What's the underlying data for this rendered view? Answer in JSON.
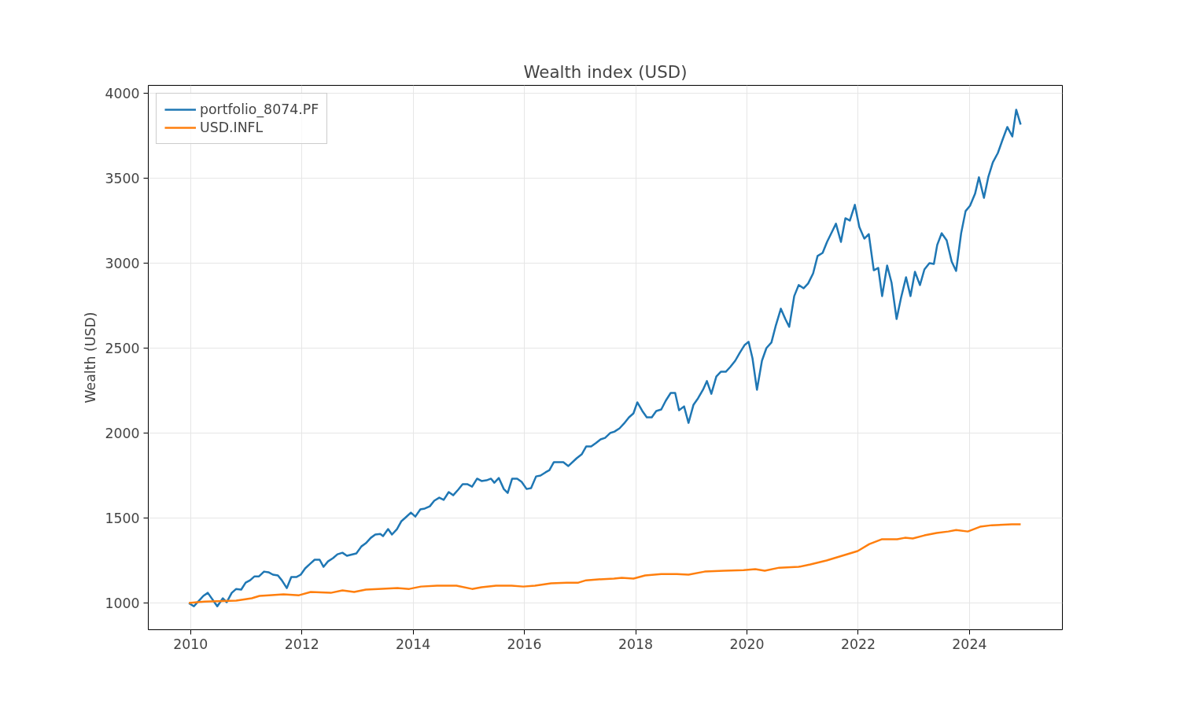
{
  "chart_data": {
    "type": "line",
    "title": "Wealth index (USD)",
    "ylabel": "Wealth (USD)",
    "xlim": [
      2009.24,
      2025.67
    ],
    "xticks": [
      2010,
      2012,
      2014,
      2016,
      2018,
      2020,
      2022,
      2024
    ],
    "ylim": [
      843,
      4046
    ],
    "yticks": [
      1000,
      1500,
      2000,
      2500,
      3000,
      3500,
      4000
    ],
    "grid": true,
    "legend": "top left",
    "line_style": "solid",
    "series": [
      {
        "name": "portfolio_8074.PF",
        "color": "#1f77b4",
        "x": [
          2009.97,
          2010.06,
          2010.23,
          2010.31,
          2010.48,
          2010.58,
          2010.65,
          2010.74,
          2010.82,
          2010.91,
          2010.99,
          2011.07,
          2011.15,
          2011.23,
          2011.32,
          2011.4,
          2011.48,
          2011.57,
          2011.64,
          2011.73,
          2011.81,
          2011.9,
          2011.98,
          2012.06,
          2012.15,
          2012.23,
          2012.32,
          2012.39,
          2012.47,
          2012.56,
          2012.64,
          2012.73,
          2012.81,
          2012.98,
          2013.07,
          2013.15,
          2013.24,
          2013.32,
          2013.41,
          2013.46,
          2013.55,
          2013.62,
          2013.71,
          2013.79,
          2013.87,
          2013.96,
          2014.04,
          2014.13,
          2014.21,
          2014.3,
          2014.38,
          2014.47,
          2014.55,
          2014.64,
          2014.72,
          2014.81,
          2014.89,
          2014.98,
          2015.06,
          2015.15,
          2015.23,
          2015.32,
          2015.4,
          2015.46,
          2015.54,
          2015.63,
          2015.7,
          2015.78,
          2015.87,
          2015.95,
          2016.04,
          2016.12,
          2016.21,
          2016.29,
          2016.38,
          2016.45,
          2016.53,
          2016.7,
          2016.79,
          2016.94,
          2017.03,
          2017.11,
          2017.2,
          2017.28,
          2017.37,
          2017.45,
          2017.54,
          2017.62,
          2017.71,
          2017.79,
          2017.88,
          2017.96,
          2018.03,
          2018.12,
          2018.2,
          2018.29,
          2018.37,
          2018.46,
          2018.54,
          2018.63,
          2018.71,
          2018.78,
          2018.87,
          2018.95,
          2019.04,
          2019.12,
          2019.21,
          2019.28,
          2019.36,
          2019.45,
          2019.53,
          2019.62,
          2019.7,
          2019.79,
          2019.87,
          2019.96,
          2020.03,
          2020.1,
          2020.18,
          2020.27,
          2020.35,
          2020.44,
          2020.52,
          2020.61,
          2020.69,
          2020.76,
          2020.85,
          2020.93,
          2021.02,
          2021.1,
          2021.19,
          2021.27,
          2021.36,
          2021.44,
          2021.53,
          2021.6,
          2021.69,
          2021.77,
          2021.85,
          2021.94,
          2022.02,
          2022.11,
          2022.19,
          2022.28,
          2022.36,
          2022.43,
          2022.52,
          2022.6,
          2022.69,
          2022.77,
          2022.86,
          2022.94,
          2023.02,
          2023.11,
          2023.19,
          2023.28,
          2023.36,
          2023.42,
          2023.5,
          2023.59,
          2023.68,
          2023.76,
          2023.85,
          2023.93,
          2024.01,
          2024.1,
          2024.17,
          2024.26,
          2024.34,
          2024.42,
          2024.51,
          2024.59,
          2024.68,
          2024.77,
          2024.84,
          2024.92
        ],
        "values": [
          1000,
          981,
          1042,
          1060,
          981,
          1028,
          1005,
          1060,
          1083,
          1079,
          1120,
          1134,
          1157,
          1157,
          1185,
          1181,
          1167,
          1162,
          1134,
          1088,
          1153,
          1153,
          1167,
          1204,
          1231,
          1255,
          1255,
          1213,
          1245,
          1264,
          1287,
          1296,
          1278,
          1292,
          1333,
          1352,
          1384,
          1403,
          1407,
          1394,
          1435,
          1403,
          1435,
          1482,
          1505,
          1532,
          1509,
          1551,
          1556,
          1569,
          1602,
          1620,
          1607,
          1653,
          1634,
          1667,
          1699,
          1699,
          1685,
          1732,
          1718,
          1722,
          1732,
          1708,
          1736,
          1671,
          1648,
          1732,
          1732,
          1713,
          1671,
          1676,
          1745,
          1750,
          1769,
          1782,
          1829,
          1829,
          1806,
          1852,
          1875,
          1921,
          1921,
          1940,
          1963,
          1972,
          2000,
          2009,
          2028,
          2056,
          2093,
          2116,
          2181,
          2130,
          2093,
          2093,
          2130,
          2139,
          2190,
          2236,
          2236,
          2134,
          2157,
          2060,
          2167,
          2204,
          2255,
          2306,
          2231,
          2333,
          2361,
          2361,
          2389,
          2426,
          2472,
          2519,
          2537,
          2440,
          2255,
          2426,
          2500,
          2533,
          2634,
          2732,
          2671,
          2625,
          2806,
          2871,
          2852,
          2880,
          2940,
          3042,
          3060,
          3125,
          3185,
          3232,
          3125,
          3264,
          3250,
          3343,
          3213,
          3144,
          3171,
          2958,
          2972,
          2806,
          2986,
          2884,
          2671,
          2796,
          2917,
          2806,
          2949,
          2871,
          2963,
          3000,
          2995,
          3107,
          3176,
          3134,
          3009,
          2954,
          3176,
          3306,
          3338,
          3408,
          3505,
          3384,
          3509,
          3593,
          3648,
          3722,
          3801,
          3745,
          3903,
          3815
        ]
      },
      {
        "name": "USD.INFL",
        "color": "#ff7f0e",
        "x": [
          2009.97,
          2010.25,
          2010.82,
          2011.1,
          2011.24,
          2011.41,
          2011.67,
          2011.95,
          2012.16,
          2012.52,
          2012.73,
          2012.94,
          2013.15,
          2013.37,
          2013.72,
          2013.93,
          2014.14,
          2014.43,
          2014.78,
          2015.06,
          2015.23,
          2015.49,
          2015.77,
          2015.98,
          2016.19,
          2016.48,
          2016.76,
          2016.97,
          2017.11,
          2017.33,
          2017.61,
          2017.75,
          2017.96,
          2018.17,
          2018.46,
          2018.74,
          2018.95,
          2019.24,
          2019.59,
          2019.94,
          2020.15,
          2020.32,
          2020.58,
          2020.93,
          2021.14,
          2021.43,
          2021.71,
          2021.99,
          2022.2,
          2022.42,
          2022.7,
          2022.84,
          2022.98,
          2023.19,
          2023.41,
          2023.62,
          2023.76,
          2023.97,
          2024.19,
          2024.4,
          2024.76,
          2024.92
        ],
        "values": [
          1000,
          1009,
          1014,
          1028,
          1042,
          1046,
          1051,
          1046,
          1065,
          1060,
          1074,
          1065,
          1079,
          1083,
          1088,
          1083,
          1097,
          1102,
          1102,
          1083,
          1093,
          1102,
          1102,
          1097,
          1102,
          1116,
          1120,
          1120,
          1134,
          1139,
          1144,
          1148,
          1144,
          1162,
          1171,
          1171,
          1167,
          1185,
          1190,
          1194,
          1199,
          1190,
          1208,
          1213,
          1227,
          1250,
          1278,
          1306,
          1347,
          1375,
          1375,
          1384,
          1380,
          1398,
          1412,
          1421,
          1430,
          1421,
          1449,
          1458,
          1463,
          1463
        ]
      }
    ]
  }
}
